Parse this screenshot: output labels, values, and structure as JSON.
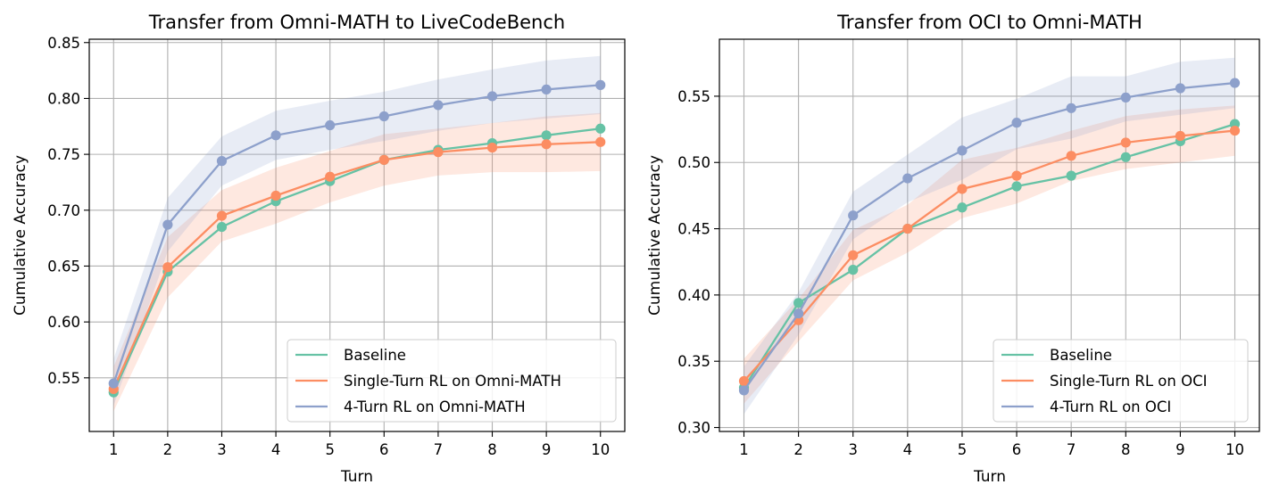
{
  "chart_data": [
    {
      "type": "line",
      "title": "Transfer from Omni-MATH to LiveCodeBench",
      "xlabel": "Turn",
      "ylabel": "Cumulative Accuracy",
      "x": [
        1,
        2,
        3,
        4,
        5,
        6,
        7,
        8,
        9,
        10
      ],
      "xlim": [
        0.55,
        10.45
      ],
      "ylim": [
        0.502,
        0.853
      ],
      "xticks": [
        "1",
        "2",
        "3",
        "4",
        "5",
        "6",
        "7",
        "8",
        "9",
        "10"
      ],
      "yticks": [
        0.55,
        0.6,
        0.65,
        0.7,
        0.75,
        0.8,
        0.85
      ],
      "ytick_labels": [
        "0.55",
        "0.60",
        "0.65",
        "0.70",
        "0.75",
        "0.80",
        "0.85"
      ],
      "grid": true,
      "legend_position": "lower-right",
      "series": [
        {
          "name": "Baseline",
          "color": "#66c2a5",
          "values": [
            0.537,
            0.645,
            0.685,
            0.708,
            0.726,
            0.745,
            0.754,
            0.76,
            0.767,
            0.773
          ]
        },
        {
          "name": "Single-Turn RL on Omni-MATH",
          "color": "#fc8d62",
          "values": [
            0.54,
            0.649,
            0.695,
            0.713,
            0.73,
            0.745,
            0.752,
            0.756,
            0.759,
            0.761
          ],
          "lower": [
            0.52,
            0.622,
            0.672,
            0.688,
            0.707,
            0.722,
            0.731,
            0.734,
            0.734,
            0.735
          ],
          "upper": [
            0.56,
            0.676,
            0.718,
            0.738,
            0.753,
            0.768,
            0.773,
            0.778,
            0.784,
            0.787
          ]
        },
        {
          "name": "4-Turn RL on Omni-MATH",
          "color": "#8da0cb",
          "values": [
            0.545,
            0.687,
            0.744,
            0.767,
            0.776,
            0.784,
            0.794,
            0.802,
            0.808,
            0.812
          ],
          "lower": [
            0.525,
            0.663,
            0.722,
            0.745,
            0.754,
            0.762,
            0.771,
            0.778,
            0.782,
            0.786
          ],
          "upper": [
            0.567,
            0.711,
            0.766,
            0.789,
            0.798,
            0.806,
            0.817,
            0.826,
            0.834,
            0.838
          ]
        }
      ]
    },
    {
      "type": "line",
      "title": "Transfer from OCI to Omni-MATH",
      "xlabel": "Turn",
      "ylabel": "Cumulative Accuracy",
      "x": [
        1,
        2,
        3,
        4,
        5,
        6,
        7,
        8,
        9,
        10
      ],
      "xlim": [
        0.55,
        10.45
      ],
      "ylim": [
        0.297,
        0.593
      ],
      "xticks": [
        "1",
        "2",
        "3",
        "4",
        "5",
        "6",
        "7",
        "8",
        "9",
        "10"
      ],
      "yticks": [
        0.3,
        0.35,
        0.4,
        0.45,
        0.5,
        0.55
      ],
      "ytick_labels": [
        "0.30",
        "0.35",
        "0.40",
        "0.45",
        "0.50",
        "0.55"
      ],
      "grid": true,
      "legend_position": "lower-right",
      "series": [
        {
          "name": "Baseline",
          "color": "#66c2a5",
          "values": [
            0.33,
            0.394,
            0.419,
            0.45,
            0.466,
            0.482,
            0.49,
            0.504,
            0.516,
            0.529
          ]
        },
        {
          "name": "Single-Turn RL on OCI",
          "color": "#fc8d62",
          "values": [
            0.335,
            0.381,
            0.43,
            0.45,
            0.48,
            0.49,
            0.505,
            0.515,
            0.52,
            0.524
          ],
          "lower": [
            0.318,
            0.365,
            0.411,
            0.432,
            0.458,
            0.469,
            0.486,
            0.495,
            0.5,
            0.505
          ],
          "upper": [
            0.352,
            0.397,
            0.449,
            0.468,
            0.502,
            0.511,
            0.524,
            0.535,
            0.54,
            0.543
          ]
        },
        {
          "name": "4-Turn RL on OCI",
          "color": "#8da0cb",
          "values": [
            0.328,
            0.386,
            0.46,
            0.488,
            0.509,
            0.53,
            0.541,
            0.549,
            0.556,
            0.56
          ],
          "lower": [
            0.31,
            0.37,
            0.442,
            0.47,
            0.487,
            0.51,
            0.518,
            0.531,
            0.536,
            0.541
          ],
          "upper": [
            0.346,
            0.402,
            0.478,
            0.506,
            0.534,
            0.548,
            0.565,
            0.565,
            0.576,
            0.579
          ]
        }
      ]
    }
  ]
}
